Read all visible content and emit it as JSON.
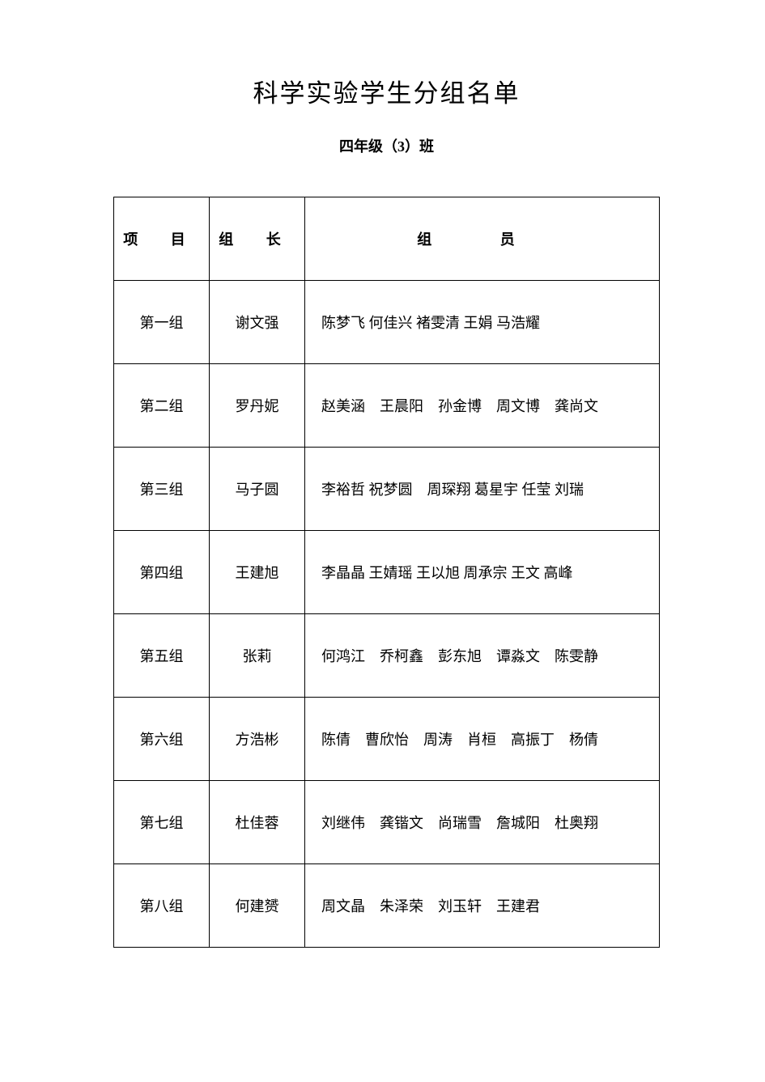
{
  "title": "科学实验学生分组名单",
  "subtitle": "四年级（3）班",
  "headers": {
    "group": "项 目",
    "leader": "组 长",
    "members": "组 员"
  },
  "rows": [
    {
      "group": "第一组",
      "leader": "谢文强",
      "members": "陈梦飞  何佳兴  褚雯清  王娟  马浩耀"
    },
    {
      "group": "第二组",
      "leader": "罗丹妮",
      "members": "赵美涵　王晨阳　孙金博　周文博　龚尚文"
    },
    {
      "group": "第三组",
      "leader": "马子圆",
      "members": "李裕哲  祝梦圆　周琛翔  葛星宇  任莹  刘瑞"
    },
    {
      "group": "第四组",
      "leader": "王建旭",
      "members": "李晶晶  王婧瑶  王以旭  周承宗  王文  高峰"
    },
    {
      "group": "第五组",
      "leader": "张莉",
      "members": "何鸿江　乔柯鑫　彭东旭　谭淼文　陈雯静"
    },
    {
      "group": "第六组",
      "leader": "方浩彬",
      "members": "陈倩　曹欣怡　周涛　肖桓　高振丁　杨倩"
    },
    {
      "group": "第七组",
      "leader": "杜佳蓉",
      "members": "刘继伟　龚锴文　尚瑞雪　詹城阳　杜奥翔"
    },
    {
      "group": "第八组",
      "leader": "何建赟",
      "members": "周文晶　朱泽荣　刘玉轩　王建君"
    }
  ]
}
